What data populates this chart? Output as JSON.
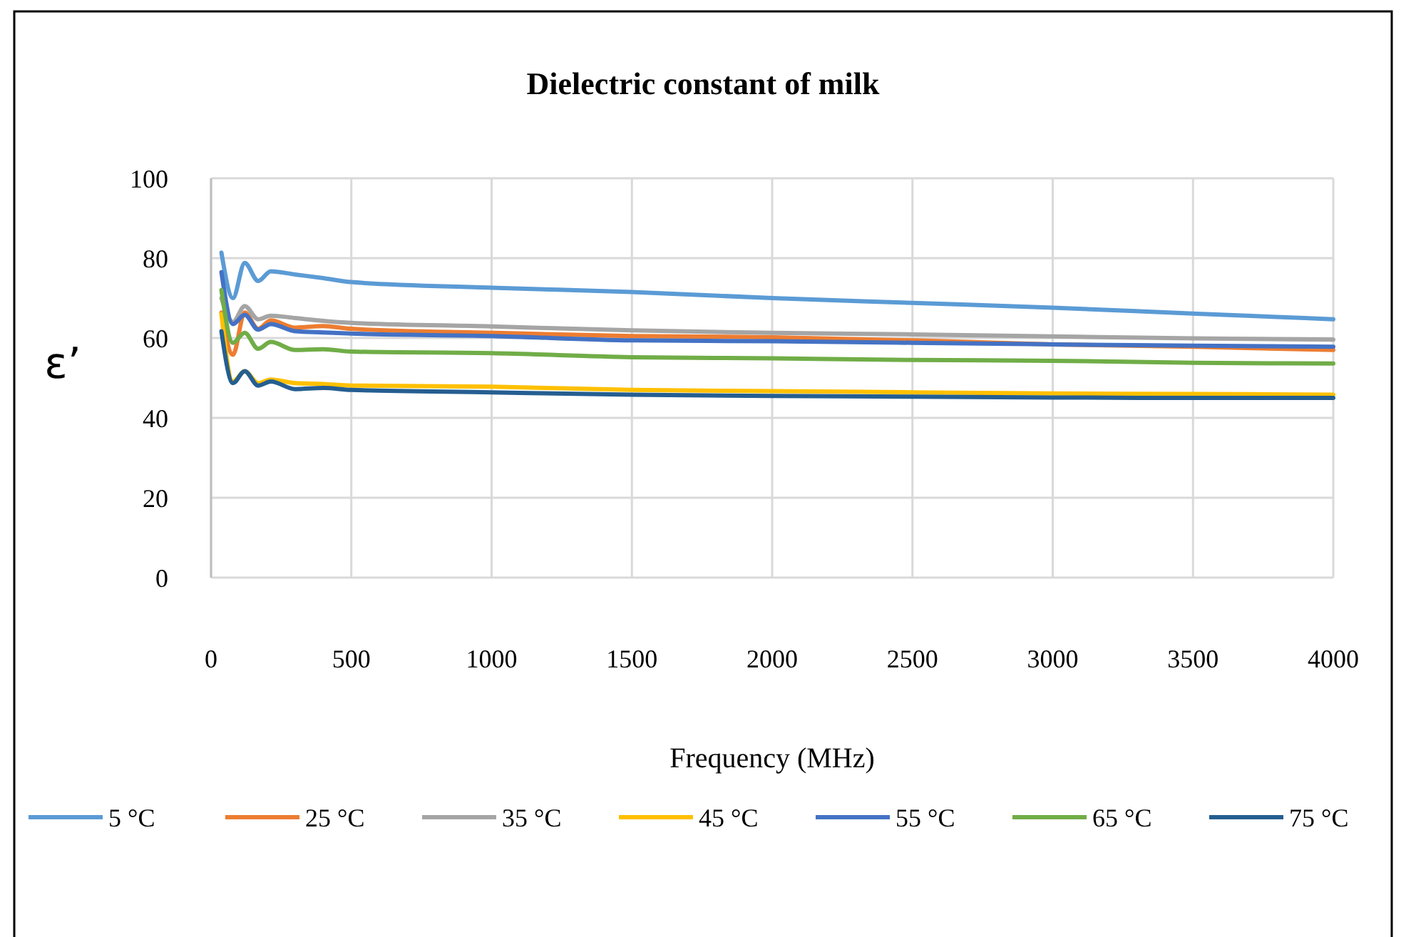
{
  "chart_data": {
    "type": "line",
    "title": "Dielectric constant of milk",
    "xlabel": "Frequency (MHz)",
    "ylabel": "ε’",
    "x": [
      37,
      78,
      120,
      168,
      213,
      300,
      400,
      500,
      1000,
      1500,
      2000,
      2500,
      3000,
      3500,
      4000
    ],
    "xlim": [
      0,
      4000
    ],
    "xticks": [
      0,
      500,
      1000,
      1500,
      2000,
      2500,
      3000,
      3500,
      4000
    ],
    "ylim": [
      0,
      100
    ],
    "yticks": [
      0,
      20,
      40,
      60,
      80,
      100
    ],
    "grid": true,
    "legend": "bottom",
    "marker": "none",
    "line_style": "solid",
    "series": [
      {
        "name": "5 °C",
        "color": "#5b9bd5",
        "values": [
          81.4,
          70.0,
          78.8,
          74.3,
          76.7,
          75.9,
          75.0,
          74.0,
          72.6,
          71.5,
          70.0,
          68.8,
          67.6,
          66.1,
          64.7
        ]
      },
      {
        "name": "25 °C",
        "color": "#ed7d31",
        "values": [
          66.4,
          55.8,
          66.4,
          62.3,
          64.4,
          62.6,
          63.0,
          62.3,
          61.3,
          60.5,
          60.2,
          59.4,
          58.4,
          57.8,
          57.0
        ]
      },
      {
        "name": "35 °C",
        "color": "#a5a5a5",
        "values": [
          70,
          64,
          68,
          64.7,
          65.6,
          65,
          64.3,
          63.8,
          62.9,
          61.9,
          61.3,
          60.9,
          60.4,
          59.9,
          59.6
        ]
      },
      {
        "name": "45 °C",
        "color": "#ffc000",
        "values": [
          66,
          49.1,
          51.7,
          48.7,
          49.6,
          48.7,
          48.5,
          48.1,
          47.8,
          47.0,
          46.7,
          46.4,
          46.1,
          46.0,
          45.8
        ]
      },
      {
        "name": "55 °C",
        "color": "#4472c4",
        "values": [
          76.5,
          63.5,
          65.8,
          62.1,
          63.5,
          61.7,
          61.4,
          61.1,
          60.5,
          59.4,
          59.2,
          58.8,
          58.4,
          58.1,
          57.8
        ]
      },
      {
        "name": "65 °C",
        "color": "#70ad47",
        "values": [
          72,
          58.8,
          61.3,
          57.3,
          59.0,
          57.0,
          57.2,
          56.6,
          56.2,
          55.2,
          54.9,
          54.5,
          54.3,
          53.8,
          53.6
        ]
      },
      {
        "name": "75 °C",
        "color": "#255e91",
        "values": [
          61.7,
          48.7,
          51.7,
          48.1,
          49.1,
          47.2,
          47.5,
          47.0,
          46.4,
          45.8,
          45.5,
          45.3,
          45.1,
          45.0,
          45.0
        ]
      }
    ]
  }
}
